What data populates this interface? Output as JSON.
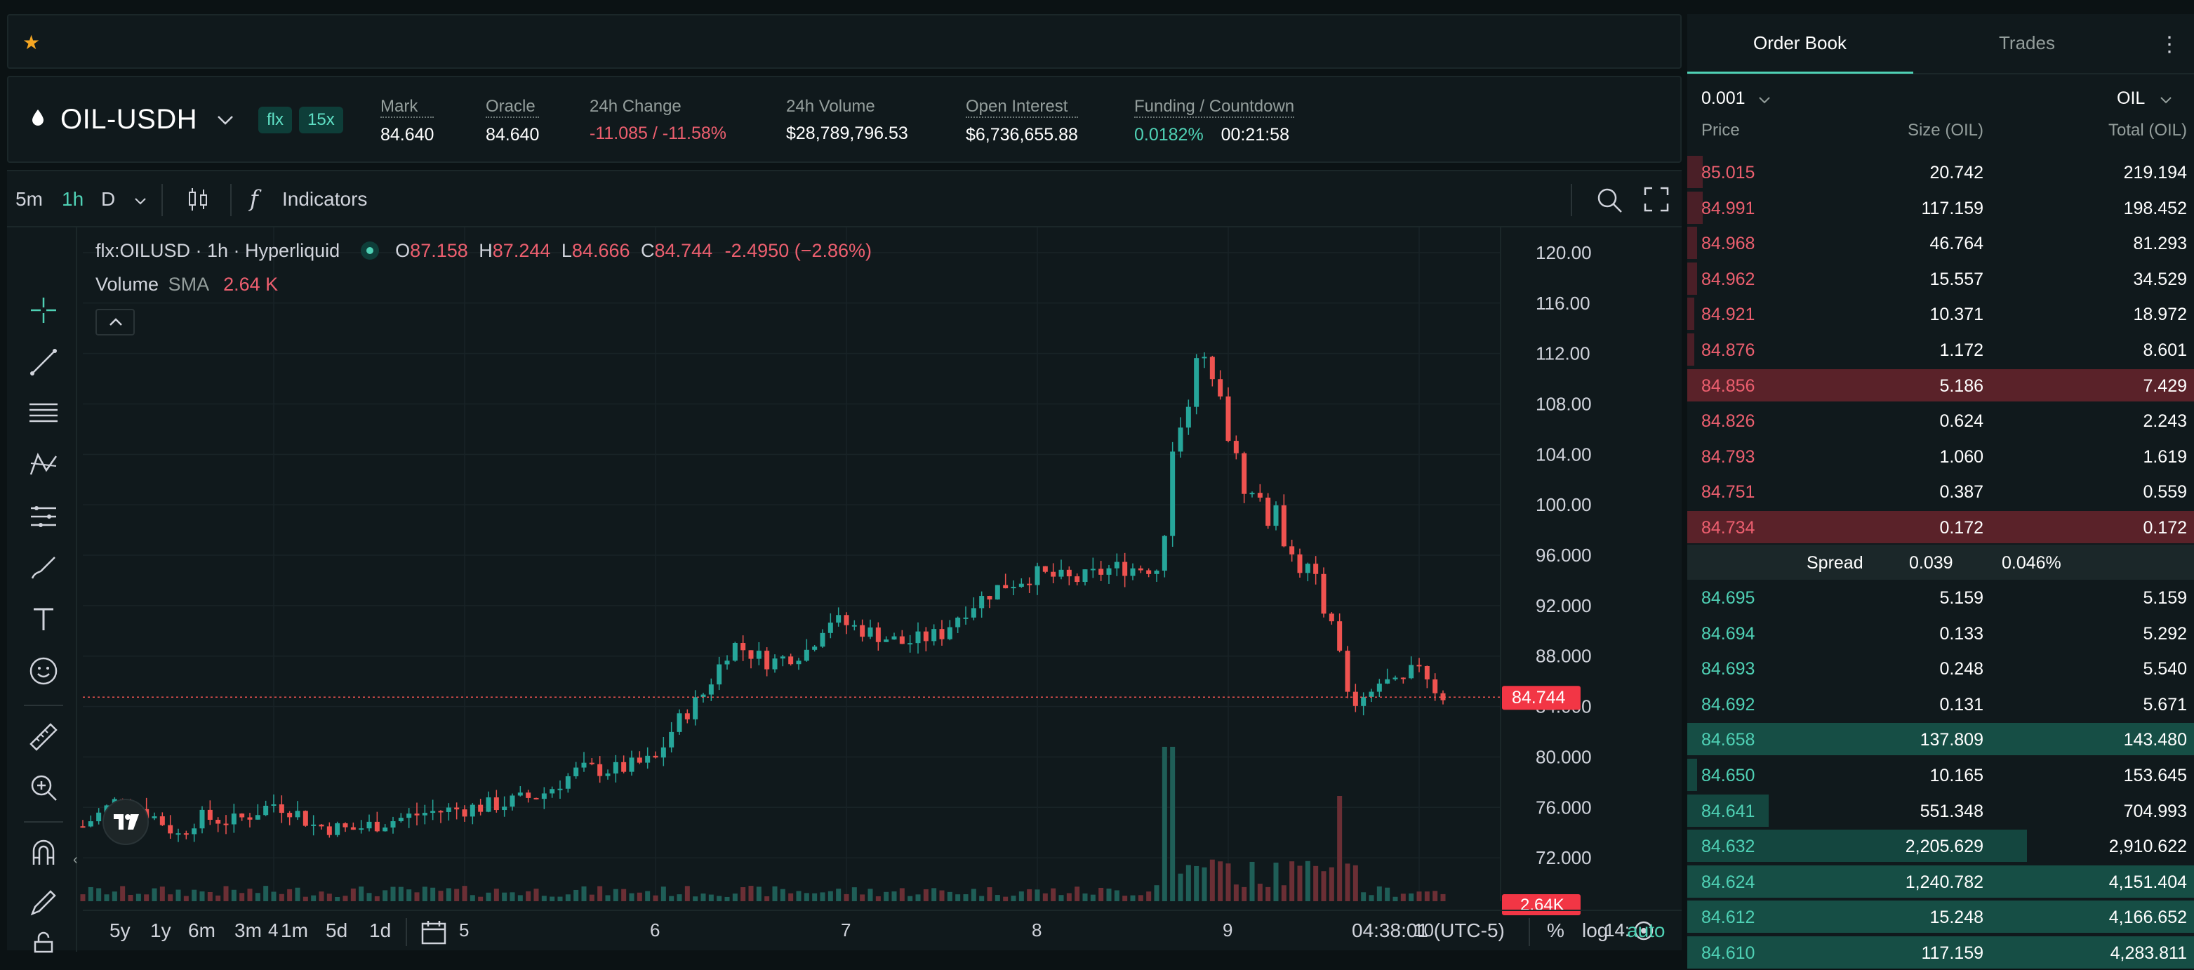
{
  "header": {
    "pair": "OIL-USDH",
    "badges": [
      "flx",
      "15x"
    ],
    "stats": [
      {
        "label": "Mark",
        "value": "84.640",
        "underline": true
      },
      {
        "label": "Oracle",
        "value": "84.640",
        "underline": true
      },
      {
        "label": "24h Change",
        "value": "-11.085 / -11.58%",
        "underline": false,
        "color": "red"
      },
      {
        "label": "24h Volume",
        "value": "$28,789,796.53",
        "underline": false
      },
      {
        "label": "Open Interest",
        "value": "$6,736,655.88",
        "underline": true
      },
      {
        "label": "Funding / Countdown",
        "value": "0.0182%",
        "value2": "00:21:58",
        "underline": true
      }
    ]
  },
  "toolbar": {
    "intervals": [
      "5m",
      "1h",
      "D"
    ],
    "active_interval": "1h",
    "indicators_label": "Indicators",
    "fx_label": "f"
  },
  "legend": {
    "symbol": "flx:OILUSD · 1h · Hyperliquid",
    "o_label": "O",
    "o": "87.158",
    "h_label": "H",
    "h": "87.244",
    "l_label": "L",
    "l": "84.666",
    "c_label": "C",
    "c": "84.744",
    "change": "-2.4950 (−2.86%)",
    "volume_label": "Volume",
    "sma_label": "SMA",
    "sma_value": "2.64 K"
  },
  "chart_data": {
    "type": "candlestick",
    "ylim": [
      68,
      122
    ],
    "y_ticks": [
      "120.00",
      "116.00",
      "112.00",
      "108.00",
      "104.00",
      "100.00",
      "96.000",
      "92.000",
      "88.000",
      "84.000",
      "80.000",
      "76.000",
      "72.000"
    ],
    "x_ticks": [
      "4",
      "5",
      "6",
      "7",
      "8",
      "9",
      "10",
      "14:"
    ],
    "last_price_label": "84.744",
    "volume_label": "2.64K",
    "close_path": [
      [
        3.0,
        74.5
      ],
      [
        3.2,
        76.8
      ],
      [
        3.4,
        75.0
      ],
      [
        3.5,
        73.8
      ],
      [
        3.6,
        75.2
      ],
      [
        3.8,
        74.9
      ],
      [
        4.0,
        76.3
      ],
      [
        4.1,
        75.8
      ],
      [
        4.2,
        74.6
      ],
      [
        4.4,
        74.2
      ],
      [
        4.6,
        74.9
      ],
      [
        4.8,
        75.6
      ],
      [
        5.0,
        75.9
      ],
      [
        5.2,
        76.3
      ],
      [
        5.4,
        77.0
      ],
      [
        5.6,
        79.0
      ],
      [
        5.8,
        79.0
      ],
      [
        6.0,
        79.8
      ],
      [
        6.1,
        82.5
      ],
      [
        6.25,
        85.0
      ],
      [
        6.4,
        89.0
      ],
      [
        6.6,
        87.5
      ],
      [
        6.8,
        88.5
      ],
      [
        6.9,
        91.0
      ],
      [
        7.1,
        90.0
      ],
      [
        7.3,
        89.0
      ],
      [
        7.5,
        89.8
      ],
      [
        7.6,
        91.5
      ],
      [
        7.8,
        93.5
      ],
      [
        8.0,
        94.5
      ],
      [
        8.2,
        94.0
      ],
      [
        8.4,
        95.0
      ],
      [
        8.65,
        95.0
      ],
      [
        8.7,
        104.0
      ],
      [
        8.8,
        110.0
      ],
      [
        8.95,
        111.0
      ],
      [
        9.05,
        102.0
      ],
      [
        9.2,
        100.0
      ],
      [
        9.35,
        97.0
      ],
      [
        9.45,
        93.0
      ],
      [
        9.55,
        92.0
      ],
      [
        9.6,
        85.0
      ],
      [
        9.7,
        84.0
      ],
      [
        9.8,
        86.0
      ],
      [
        9.9,
        85.5
      ],
      [
        10.0,
        87.5
      ],
      [
        10.1,
        85.0
      ],
      [
        10.15,
        84.744
      ]
    ]
  },
  "bottombar": {
    "ranges": [
      "5y",
      "1y",
      "6m",
      "3m",
      "1m",
      "5d",
      "1d"
    ],
    "time": "04:38:01 (UTC-5)",
    "pct": "%",
    "log": "log",
    "auto": "auto"
  },
  "orderbook": {
    "tabs": [
      "Order Book",
      "Trades"
    ],
    "tick": "0.001",
    "unit": "OIL",
    "headers": [
      "Price",
      "Size (OIL)",
      "Total (OIL)"
    ],
    "asks": [
      {
        "price": "85.015",
        "size": "20.742",
        "total": "219.194",
        "depth": 0.03
      },
      {
        "price": "84.991",
        "size": "117.159",
        "total": "198.452",
        "depth": 0.03
      },
      {
        "price": "84.968",
        "size": "46.764",
        "total": "81.293",
        "depth": 0.02
      },
      {
        "price": "84.962",
        "size": "15.557",
        "total": "34.529",
        "depth": 0.02
      },
      {
        "price": "84.921",
        "size": "10.371",
        "total": "18.972",
        "depth": 0.01
      },
      {
        "price": "84.876",
        "size": "1.172",
        "total": "8.601",
        "depth": 0.01
      },
      {
        "price": "84.856",
        "size": "5.186",
        "total": "7.429",
        "depth": 1.0
      },
      {
        "price": "84.826",
        "size": "0.624",
        "total": "2.243",
        "depth": 0.0
      },
      {
        "price": "84.793",
        "size": "1.060",
        "total": "1.619",
        "depth": 0.0
      },
      {
        "price": "84.751",
        "size": "0.387",
        "total": "0.559",
        "depth": 0.0
      },
      {
        "price": "84.734",
        "size": "0.172",
        "total": "0.172",
        "depth": 1.0
      }
    ],
    "spread": {
      "label": "Spread",
      "value": "0.039",
      "pct": "0.046%"
    },
    "bids": [
      {
        "price": "84.695",
        "size": "5.159",
        "total": "5.159",
        "depth": 0.0
      },
      {
        "price": "84.694",
        "size": "0.133",
        "total": "5.292",
        "depth": 0.0
      },
      {
        "price": "84.693",
        "size": "0.248",
        "total": "5.540",
        "depth": 0.0
      },
      {
        "price": "84.692",
        "size": "0.131",
        "total": "5.671",
        "depth": 0.0
      },
      {
        "price": "84.658",
        "size": "137.809",
        "total": "143.480",
        "depth": 1.0
      },
      {
        "price": "84.650",
        "size": "10.165",
        "total": "153.645",
        "depth": 0.02
      },
      {
        "price": "84.641",
        "size": "551.348",
        "total": "704.993",
        "depth": 0.16
      },
      {
        "price": "84.632",
        "size": "2,205.629",
        "total": "2,910.622",
        "depth": 0.67
      },
      {
        "price": "84.624",
        "size": "1,240.782",
        "total": "4,151.404",
        "depth": 1.0
      },
      {
        "price": "84.612",
        "size": "15.248",
        "total": "4,166.652",
        "depth": 1.0
      },
      {
        "price": "84.610",
        "size": "117.159",
        "total": "4,283.811",
        "depth": 1.0
      }
    ]
  }
}
